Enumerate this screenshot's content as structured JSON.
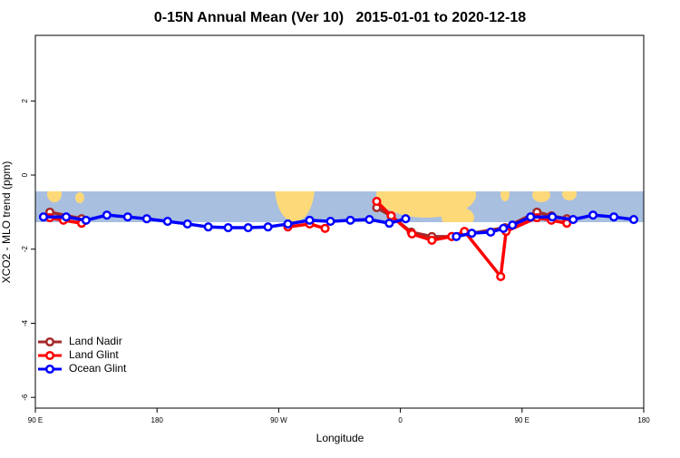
{
  "chart_data": {
    "type": "line",
    "title": "0-15N Annual Mean (Ver 10)   2015-01-01 to 2020-12-18",
    "x_label": "Longitude",
    "y_label": "XCO2 - MLO trend (ppm)",
    "xlim": [
      90,
      540
    ],
    "ylim": [
      -6.29,
      3.77
    ],
    "xticks": [
      {
        "value": 90,
        "label": "90 E"
      },
      180,
      {
        "value": 270,
        "label": "90 W"
      },
      {
        "value": 360,
        "label": "0"
      },
      {
        "value": 450,
        "label": "90 E"
      },
      {
        "value": 540,
        "label": "180"
      }
    ],
    "yticks": [
      -6,
      -4,
      -2,
      0,
      2
    ],
    "legend": "bottomleft",
    "series": [
      {
        "name": "Land Nadir",
        "color": "#a52a2a",
        "x": [
          100.7,
          124.2,
          null,
          342.5,
          353.2,
          368,
          383.3,
          398,
          437.5,
          461,
          471.7,
          483.1
        ],
        "values": [
          -1.0,
          -1.18,
          null,
          -0.88,
          -1.1,
          -1.54,
          -1.66,
          -1.66,
          -1.42,
          -1.0,
          -1.1,
          -1.18
        ]
      },
      {
        "name": "Land Glint",
        "color": "#ff0000",
        "x": [
          100.7,
          110.8,
          124.2,
          null,
          276.8,
          292.9,
          304.3,
          null,
          342.5,
          353.2,
          368.6,
          383.3,
          398,
          407.4,
          434.2,
          438.2,
          461,
          471.7,
          483.1
        ],
        "values": [
          -1.15,
          -1.22,
          -1.3,
          null,
          -1.4,
          -1.32,
          -1.44,
          null,
          -0.71,
          -1.1,
          -1.59,
          -1.76,
          -1.66,
          -1.52,
          -2.74,
          -1.52,
          -1.15,
          -1.22,
          -1.3
        ]
      },
      {
        "name": "Ocean Glint",
        "color": "#0000ff",
        "x": [
          96,
          112.8,
          127.5,
          142.9,
          158.3,
          172.4,
          187.8,
          202.5,
          217.9,
          232.6,
          247.4,
          262.1,
          276.8,
          292.9,
          308.3,
          323,
          337.1,
          351.8,
          363.9,
          null,
          401.4,
          412.8,
          426.8,
          436.2,
          442.9,
          456.3,
          472.4,
          487.8,
          502.5,
          517.9,
          532.6
        ],
        "values": [
          -1.13,
          -1.13,
          -1.22,
          -1.08,
          -1.13,
          -1.18,
          -1.25,
          -1.32,
          -1.4,
          -1.42,
          -1.42,
          -1.4,
          -1.32,
          -1.22,
          -1.25,
          -1.22,
          -1.2,
          -1.3,
          -1.18,
          null,
          -1.66,
          -1.57,
          -1.54,
          -1.44,
          -1.35,
          -1.13,
          -1.13,
          -1.2,
          -1.08,
          -1.13,
          -1.2
        ]
      }
    ]
  }
}
